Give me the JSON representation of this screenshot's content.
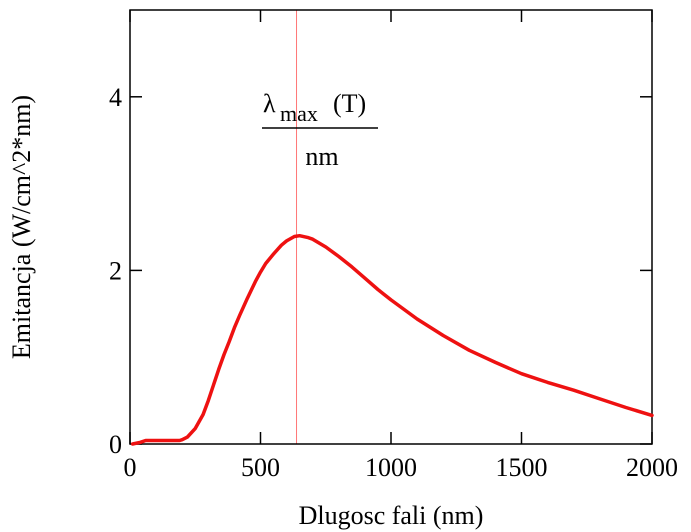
{
  "chart_data": {
    "type": "line",
    "title": "",
    "xlabel": "Dlugosc fali (nm)",
    "ylabel": "Emitancja (W/cm^2*nm)",
    "xlim": [
      0,
      2000
    ],
    "ylim": [
      0,
      5
    ],
    "xticks": [
      0,
      500,
      1000,
      1500,
      2000
    ],
    "yticks": [
      0,
      2,
      4
    ],
    "grid": false,
    "annotation": {
      "symbol": "λ",
      "subscript": "max",
      "suffix": "(T)",
      "denominator": "nm",
      "x_value": 638
    },
    "colors": {
      "series": "#ee1111",
      "marker_line": "#ff7777",
      "axes": "#000000"
    },
    "series": [
      {
        "x": [
          10,
          40,
          60,
          100,
          150,
          190,
          200,
          220,
          250,
          280,
          300,
          320,
          340,
          360,
          380,
          400,
          420,
          450,
          480,
          500,
          520,
          550,
          580,
          600,
          630,
          650,
          680,
          700,
          750,
          800,
          850,
          900,
          950,
          1000,
          1100,
          1200,
          1300,
          1400,
          1500,
          1600,
          1700,
          1800,
          1900,
          2000
        ],
        "y": [
          0.0,
          0.02,
          0.04,
          0.04,
          0.04,
          0.04,
          0.05,
          0.08,
          0.18,
          0.34,
          0.5,
          0.68,
          0.86,
          1.03,
          1.18,
          1.34,
          1.48,
          1.68,
          1.87,
          1.98,
          2.08,
          2.19,
          2.29,
          2.34,
          2.39,
          2.4,
          2.38,
          2.36,
          2.27,
          2.16,
          2.04,
          1.91,
          1.78,
          1.66,
          1.44,
          1.25,
          1.08,
          0.94,
          0.81,
          0.71,
          0.62,
          0.52,
          0.42,
          0.33
        ]
      }
    ]
  }
}
